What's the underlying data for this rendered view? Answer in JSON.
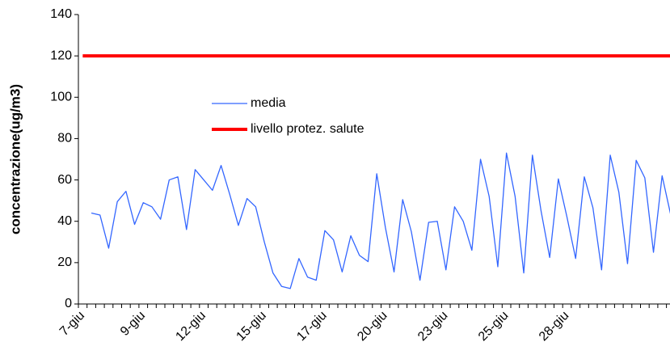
{
  "chart_data": {
    "type": "line",
    "ylabel": "concentrazione(ug/m3)",
    "categories": [
      "7-giu",
      null,
      null,
      null,
      null,
      null,
      null,
      "9-giu",
      null,
      null,
      null,
      null,
      null,
      null,
      "12-giu",
      null,
      null,
      null,
      null,
      null,
      null,
      "15-giu",
      null,
      null,
      null,
      null,
      null,
      null,
      "17-giu",
      null,
      null,
      null,
      null,
      null,
      null,
      "20-giu",
      null,
      null,
      null,
      null,
      null,
      null,
      "23-giu",
      null,
      null,
      null,
      null,
      null,
      null,
      "25-giu",
      null,
      null,
      null,
      null,
      null,
      null,
      "28-giu",
      null,
      null,
      null,
      null,
      null,
      null,
      null,
      null,
      null,
      null,
      null,
      null
    ],
    "series": [
      {
        "name": "media",
        "color": "#3366ff",
        "width": 1.3,
        "values": [
          null,
          44,
          43,
          27,
          49.5,
          54.5,
          38.5,
          49,
          47,
          41,
          60,
          61.5,
          36,
          65,
          60,
          55,
          67,
          53,
          38,
          51,
          47,
          30,
          15,
          8.5,
          7.5,
          22,
          13,
          11.5,
          35.5,
          31,
          15.5,
          33,
          23.5,
          20.5,
          63,
          37,
          15.5,
          50.5,
          35,
          11.5,
          39.5,
          40,
          16.5,
          47,
          40,
          26,
          70,
          52,
          18,
          73,
          52,
          15,
          72,
          45,
          22.5,
          60.5,
          42,
          22,
          61.5,
          46.5,
          16.5,
          72,
          54,
          19.5,
          69.5,
          61,
          25,
          62,
          43
        ]
      },
      {
        "name": "livello protez. salute",
        "color": "#ff0000",
        "width": 4,
        "values": [
          120,
          120,
          120,
          120,
          120,
          120,
          120,
          120,
          120,
          120,
          120,
          120,
          120,
          120,
          120,
          120,
          120,
          120,
          120,
          120,
          120,
          120,
          120,
          120,
          120,
          120,
          120,
          120,
          120,
          120,
          120,
          120,
          120,
          120,
          120,
          120,
          120,
          120,
          120,
          120,
          120,
          120,
          120,
          120,
          120,
          120,
          120,
          120,
          120,
          120,
          120,
          120,
          120,
          120,
          120,
          120,
          120,
          120,
          120,
          120,
          120,
          120,
          120,
          120,
          120,
          120,
          120,
          120,
          120
        ]
      }
    ],
    "ylim": [
      0,
      140
    ],
    "yticks": [
      0,
      20,
      40,
      60,
      80,
      100,
      120,
      140
    ]
  }
}
